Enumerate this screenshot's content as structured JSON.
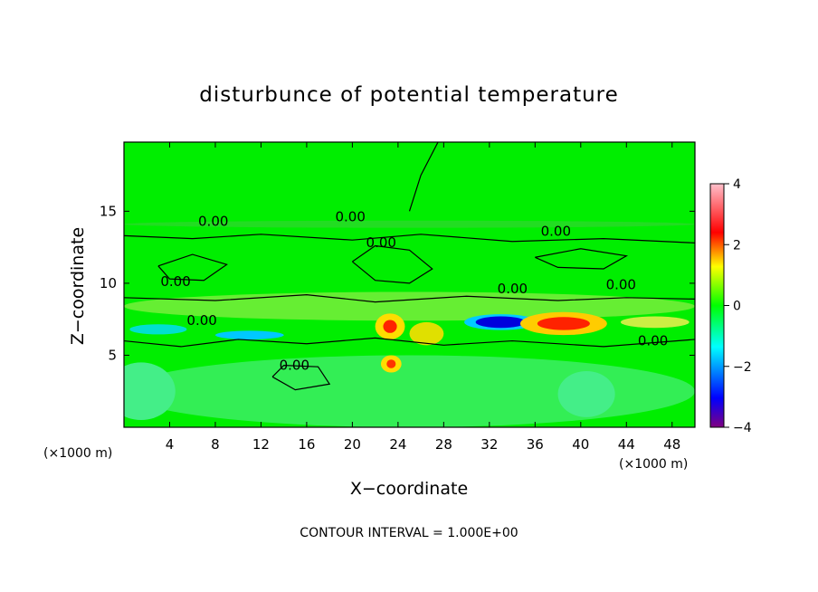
{
  "chart_data": {
    "type": "heatmap",
    "title": "disturbunce of potential temperature",
    "xlabel": "X−coordinate",
    "ylabel": "Z−coordinate",
    "x_unit_left": "(×1000 m)",
    "x_unit_right": "(×1000 m)",
    "xlim": [
      0,
      50
    ],
    "ylim": [
      0,
      19.8
    ],
    "x_ticks": [
      4,
      8,
      12,
      16,
      20,
      24,
      28,
      32,
      36,
      40,
      44,
      48
    ],
    "y_ticks": [
      5,
      10,
      15
    ],
    "colorbar": {
      "range": [
        -4,
        4
      ],
      "ticks": [
        4,
        2,
        0,
        -2,
        -4
      ],
      "tick_labels": [
        "4",
        "2",
        "0",
        "−2",
        "−4"
      ],
      "colors": [
        "#800080",
        "#0000ff",
        "#00ffff",
        "#00ff00",
        "#ffff00",
        "#ff0000",
        "#ffc0cb"
      ]
    },
    "footer": "CONTOUR INTERVAL = 1.000E+00",
    "contour_labels": [
      {
        "text": "0.00",
        "x": 6.5,
        "z": 14.0
      },
      {
        "text": "0.00",
        "x": 18.5,
        "z": 14.3
      },
      {
        "text": "0.00",
        "x": 21.2,
        "z": 12.5
      },
      {
        "text": "0.00",
        "x": 36.5,
        "z": 13.3
      },
      {
        "text": "0.00",
        "x": 3.2,
        "z": 9.8
      },
      {
        "text": "0.00",
        "x": 32.7,
        "z": 9.3
      },
      {
        "text": "0.00",
        "x": 42.2,
        "z": 9.6
      },
      {
        "text": "0.00",
        "x": 5.5,
        "z": 7.1
      },
      {
        "text": "0.00",
        "x": 13.6,
        "z": 4.0
      },
      {
        "text": "0.00",
        "x": 45.0,
        "z": 5.7
      }
    ]
  }
}
